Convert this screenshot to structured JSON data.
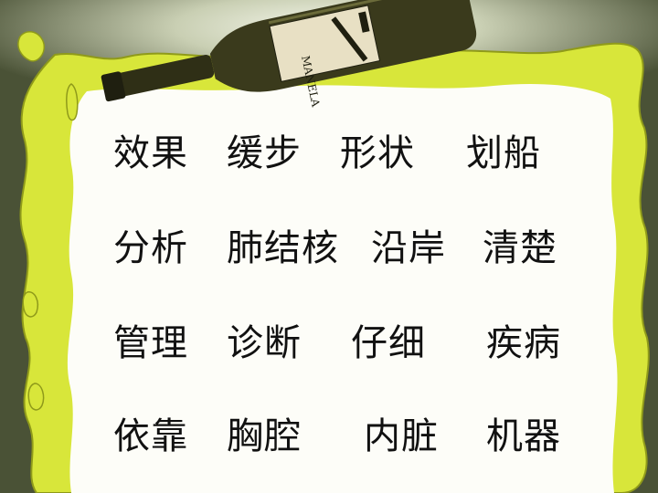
{
  "slide": {
    "bottle_label": "MANELA",
    "rows": [
      [
        "效果",
        "缓步",
        "形状",
        "划船"
      ],
      [
        "分析",
        "肺结核",
        "沿岸",
        "清楚"
      ],
      [
        "管理",
        "诊断",
        "仔细",
        "疾病"
      ],
      [
        "依靠",
        "胸腔",
        "内脏",
        "机器"
      ]
    ]
  },
  "colors": {
    "background": "#4a5236",
    "paper": "#fdfdf8",
    "liquid": "#d8e63a",
    "liquid_edge": "#8f9a1a",
    "bottle": "#3a3a1c",
    "text": "#111111"
  }
}
